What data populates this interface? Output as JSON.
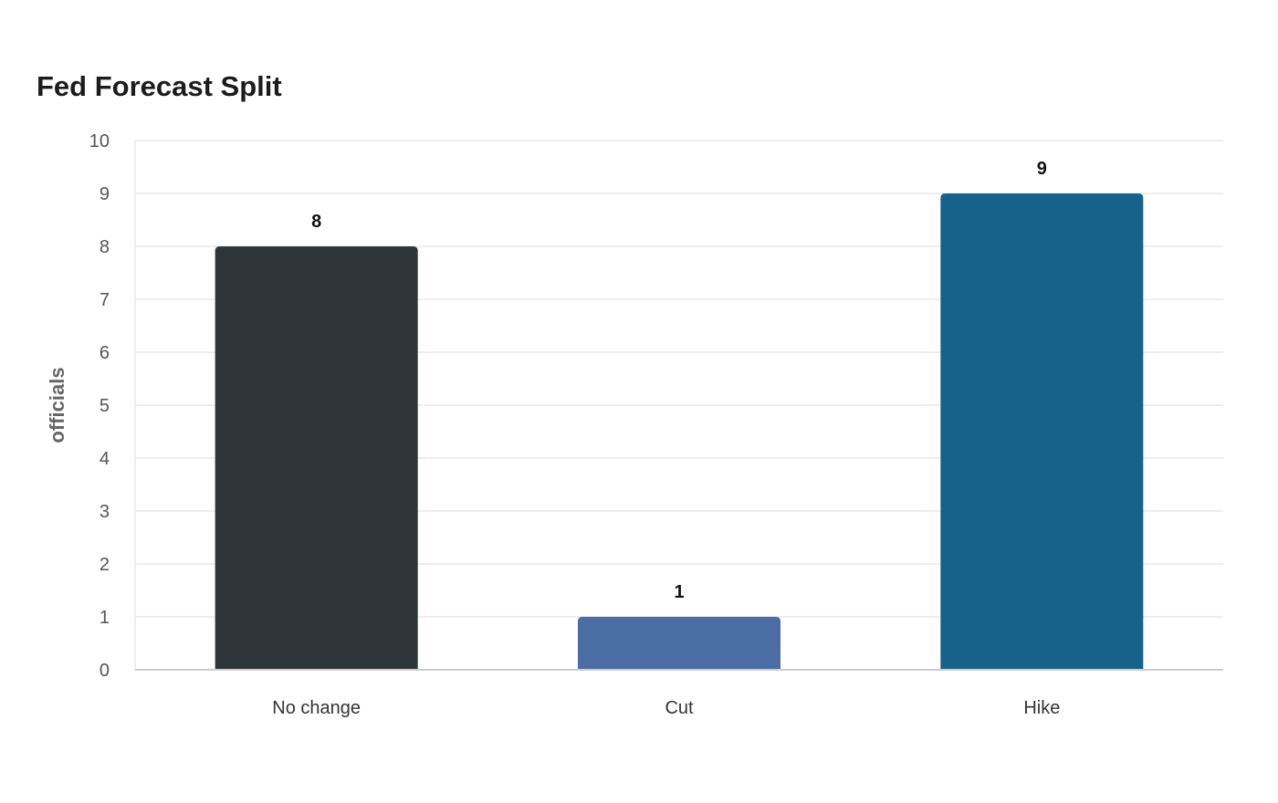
{
  "chart_data": {
    "type": "bar",
    "title": "Fed Forecast Split",
    "xlabel": "",
    "ylabel": "officials",
    "categories": [
      "No change",
      "Cut",
      "Hike"
    ],
    "values": [
      8,
      1,
      9
    ],
    "colors": [
      "#2e3538",
      "#4a6da3",
      "#17628b"
    ],
    "ylim": [
      0,
      10
    ],
    "yticks": [
      0,
      1,
      2,
      3,
      4,
      5,
      6,
      7,
      8,
      9,
      10
    ],
    "grid": true,
    "legend": "none",
    "gridColor": "#e8e8e8",
    "axisColor": "#cccccc"
  }
}
